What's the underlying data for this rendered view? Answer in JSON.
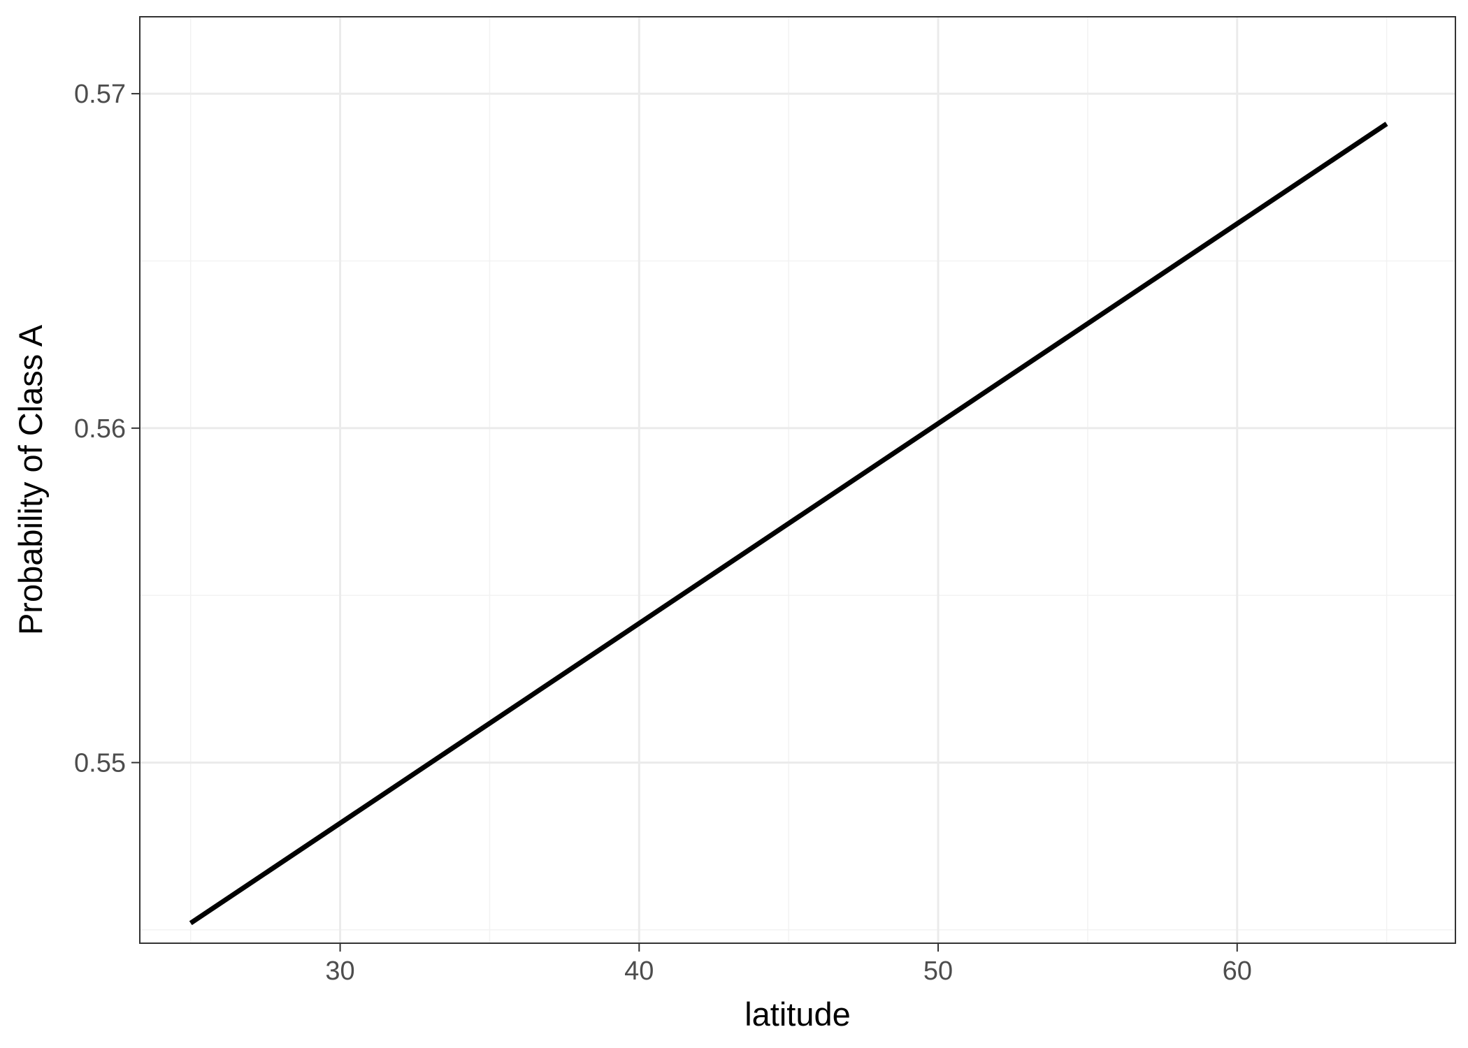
{
  "chart_data": {
    "type": "line",
    "title": "",
    "xlabel": "latitude",
    "ylabel": "Probability of Class A",
    "xlim": [
      23.3,
      67.3
    ],
    "ylim": [
      0.5446,
      0.5723
    ],
    "x_ticks": [
      30,
      40,
      50,
      60
    ],
    "x_tick_labels": [
      "30",
      "40",
      "50",
      "60"
    ],
    "x_minor_ticks": [
      25,
      35,
      45,
      55,
      65
    ],
    "y_ticks": [
      0.55,
      0.56,
      0.57
    ],
    "y_tick_labels": [
      "0.55",
      "0.56",
      "0.57"
    ],
    "y_minor_ticks": [
      0.545,
      0.555,
      0.565
    ],
    "grid": true,
    "legend": "none",
    "series": [
      {
        "x": [
          25,
          65
        ],
        "y": [
          0.5452,
          0.5691
        ]
      }
    ],
    "colors": {
      "line": "#000000",
      "grid_major": "#ebebeb",
      "grid_minor": "#f2f2f2",
      "panel_border": "#333333",
      "tick_text": "#4d4d4d",
      "axis_title": "#000000",
      "background": "#ffffff"
    }
  }
}
